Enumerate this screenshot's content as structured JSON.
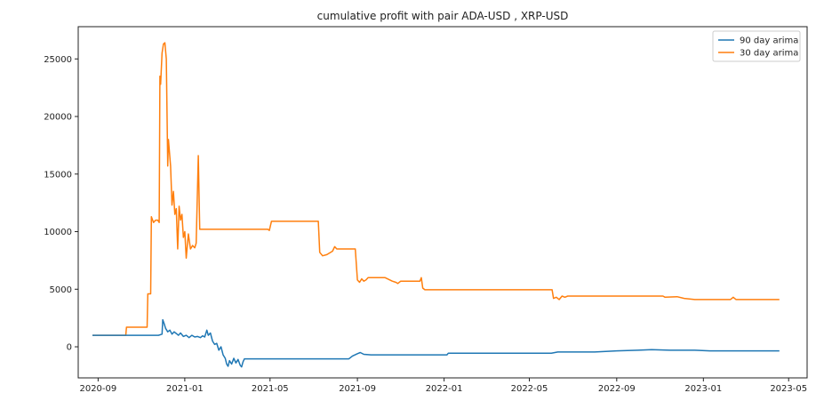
{
  "chart_data": {
    "type": "line",
    "title": "cumulative profit with pair ADA-USD , XRP-USD",
    "xlabel": "",
    "ylabel": "",
    "xlim": [
      "2020-08-04",
      "2023-05-27"
    ],
    "ylim": [
      -2700,
      27800
    ],
    "x_ticks": [
      "2020-09-01",
      "2021-01-01",
      "2021-05-01",
      "2021-09-01",
      "2022-01-01",
      "2022-05-01",
      "2022-09-01",
      "2023-01-01",
      "2023-05-01"
    ],
    "x_tick_labels": [
      "2020-09",
      "2021-01",
      "2021-05",
      "2021-09",
      "2022-01",
      "2022-05",
      "2022-09",
      "2023-01",
      "2023-05"
    ],
    "y_ticks": [
      0,
      5000,
      10000,
      15000,
      20000,
      25000
    ],
    "y_tick_labels": [
      "0",
      "5000",
      "10000",
      "15000",
      "20000",
      "25000"
    ],
    "grid": false,
    "legend": "top-right",
    "series": [
      {
        "name": "90 day arima",
        "color": "#1f77b4",
        "points": [
          [
            "2020-08-24",
            1000
          ],
          [
            "2020-10-10",
            1000
          ],
          [
            "2020-11-25",
            1000
          ],
          [
            "2020-11-30",
            1100
          ],
          [
            "2020-12-01",
            2350
          ],
          [
            "2020-12-03",
            2000
          ],
          [
            "2020-12-05",
            1600
          ],
          [
            "2020-12-08",
            1300
          ],
          [
            "2020-12-11",
            1450
          ],
          [
            "2020-12-14",
            1100
          ],
          [
            "2020-12-17",
            1300
          ],
          [
            "2020-12-20",
            1150
          ],
          [
            "2020-12-23",
            1000
          ],
          [
            "2020-12-26",
            1200
          ],
          [
            "2020-12-30",
            900
          ],
          [
            "2021-01-03",
            1000
          ],
          [
            "2021-01-07",
            800
          ],
          [
            "2021-01-11",
            1000
          ],
          [
            "2021-01-15",
            850
          ],
          [
            "2021-01-19",
            900
          ],
          [
            "2021-01-23",
            800
          ],
          [
            "2021-01-26",
            950
          ],
          [
            "2021-01-29",
            850
          ],
          [
            "2021-02-01",
            1450
          ],
          [
            "2021-02-03",
            1000
          ],
          [
            "2021-02-06",
            1200
          ],
          [
            "2021-02-09",
            500
          ],
          [
            "2021-02-12",
            200
          ],
          [
            "2021-02-15",
            300
          ],
          [
            "2021-02-18",
            -300
          ],
          [
            "2021-02-21",
            0
          ],
          [
            "2021-02-24",
            -700
          ],
          [
            "2021-02-27",
            -1000
          ],
          [
            "2021-03-01",
            -1500
          ],
          [
            "2021-03-03",
            -1700
          ],
          [
            "2021-03-05",
            -1200
          ],
          [
            "2021-03-08",
            -1500
          ],
          [
            "2021-03-11",
            -1000
          ],
          [
            "2021-03-14",
            -1400
          ],
          [
            "2021-03-17",
            -1100
          ],
          [
            "2021-03-20",
            -1600
          ],
          [
            "2021-03-22",
            -1750
          ],
          [
            "2021-03-24",
            -1300
          ],
          [
            "2021-03-26",
            -1050
          ],
          [
            "2021-04-15",
            -1050
          ],
          [
            "2021-06-01",
            -1050
          ],
          [
            "2021-08-20",
            -1050
          ],
          [
            "2021-08-25",
            -800
          ],
          [
            "2021-09-01",
            -600
          ],
          [
            "2021-09-05",
            -500
          ],
          [
            "2021-09-10",
            -650
          ],
          [
            "2021-09-20",
            -700
          ],
          [
            "2021-10-15",
            -700
          ],
          [
            "2021-12-15",
            -700
          ],
          [
            "2022-01-05",
            -700
          ],
          [
            "2022-01-07",
            -550
          ],
          [
            "2022-03-15",
            -550
          ],
          [
            "2022-06-01",
            -550
          ],
          [
            "2022-06-10",
            -450
          ],
          [
            "2022-08-01",
            -450
          ],
          [
            "2022-09-01",
            -350
          ],
          [
            "2022-10-01",
            -300
          ],
          [
            "2022-10-20",
            -250
          ],
          [
            "2022-11-15",
            -300
          ],
          [
            "2022-12-20",
            -300
          ],
          [
            "2023-01-10",
            -350
          ],
          [
            "2023-02-01",
            -350
          ],
          [
            "2023-04-18",
            -350
          ]
        ]
      },
      {
        "name": "30 day arima",
        "color": "#ff7f0e",
        "points": [
          [
            "2020-08-24",
            1000
          ],
          [
            "2020-10-10",
            1000
          ],
          [
            "2020-10-11",
            1700
          ],
          [
            "2020-11-09",
            1700
          ],
          [
            "2020-11-10",
            4600
          ],
          [
            "2020-11-14",
            4600
          ],
          [
            "2020-11-15",
            11300
          ],
          [
            "2020-11-18",
            10800
          ],
          [
            "2020-11-21",
            11000
          ],
          [
            "2020-11-24",
            11000
          ],
          [
            "2020-11-26",
            10800
          ],
          [
            "2020-11-27",
            23500
          ],
          [
            "2020-11-28",
            22800
          ],
          [
            "2020-11-30",
            25500
          ],
          [
            "2020-12-02",
            26300
          ],
          [
            "2020-12-04",
            26400
          ],
          [
            "2020-12-06",
            25000
          ],
          [
            "2020-12-08",
            15700
          ],
          [
            "2020-12-09",
            18000
          ],
          [
            "2020-12-12",
            15700
          ],
          [
            "2020-12-14",
            12300
          ],
          [
            "2020-12-16",
            13500
          ],
          [
            "2020-12-18",
            11500
          ],
          [
            "2020-12-20",
            12000
          ],
          [
            "2020-12-22",
            8500
          ],
          [
            "2020-12-24",
            12200
          ],
          [
            "2020-12-26",
            11000
          ],
          [
            "2020-12-28",
            11500
          ],
          [
            "2020-12-30",
            9500
          ],
          [
            "2021-01-01",
            10000
          ],
          [
            "2021-01-03",
            7700
          ],
          [
            "2021-01-06",
            9800
          ],
          [
            "2021-01-09",
            8500
          ],
          [
            "2021-01-12",
            8800
          ],
          [
            "2021-01-15",
            8600
          ],
          [
            "2021-01-17",
            9000
          ],
          [
            "2021-01-20",
            16600
          ],
          [
            "2021-01-22",
            10200
          ],
          [
            "2021-02-15",
            10200
          ],
          [
            "2021-03-20",
            10200
          ],
          [
            "2021-04-28",
            10200
          ],
          [
            "2021-04-30",
            10100
          ],
          [
            "2021-05-03",
            10900
          ],
          [
            "2021-05-20",
            10900
          ],
          [
            "2021-06-15",
            10900
          ],
          [
            "2021-07-08",
            10900
          ],
          [
            "2021-07-10",
            8200
          ],
          [
            "2021-07-14",
            7900
          ],
          [
            "2021-07-20",
            8000
          ],
          [
            "2021-07-28",
            8300
          ],
          [
            "2021-07-31",
            8700
          ],
          [
            "2021-08-03",
            8500
          ],
          [
            "2021-08-20",
            8500
          ],
          [
            "2021-08-29",
            8500
          ],
          [
            "2021-09-01",
            5800
          ],
          [
            "2021-09-04",
            5600
          ],
          [
            "2021-09-07",
            5900
          ],
          [
            "2021-09-10",
            5700
          ],
          [
            "2021-09-13",
            5800
          ],
          [
            "2021-09-16",
            6000
          ],
          [
            "2021-10-10",
            6000
          ],
          [
            "2021-10-20",
            5700
          ],
          [
            "2021-10-25",
            5600
          ],
          [
            "2021-10-28",
            5500
          ],
          [
            "2021-11-01",
            5700
          ],
          [
            "2021-11-20",
            5700
          ],
          [
            "2021-11-28",
            5700
          ],
          [
            "2021-11-30",
            6000
          ],
          [
            "2021-12-02",
            5100
          ],
          [
            "2021-12-05",
            4950
          ],
          [
            "2022-02-15",
            4950
          ],
          [
            "2022-05-01",
            4950
          ],
          [
            "2022-06-02",
            4950
          ],
          [
            "2022-06-04",
            4200
          ],
          [
            "2022-06-08",
            4300
          ],
          [
            "2022-06-12",
            4100
          ],
          [
            "2022-06-16",
            4400
          ],
          [
            "2022-06-20",
            4300
          ],
          [
            "2022-06-24",
            4400
          ],
          [
            "2022-08-15",
            4400
          ],
          [
            "2022-11-05",
            4400
          ],
          [
            "2022-11-08",
            4300
          ],
          [
            "2022-11-25",
            4350
          ],
          [
            "2022-12-05",
            4200
          ],
          [
            "2022-12-20",
            4100
          ],
          [
            "2023-01-15",
            4100
          ],
          [
            "2023-02-08",
            4100
          ],
          [
            "2023-02-12",
            4300
          ],
          [
            "2023-02-16",
            4100
          ],
          [
            "2023-03-10",
            4100
          ],
          [
            "2023-04-18",
            4100
          ]
        ]
      }
    ]
  }
}
